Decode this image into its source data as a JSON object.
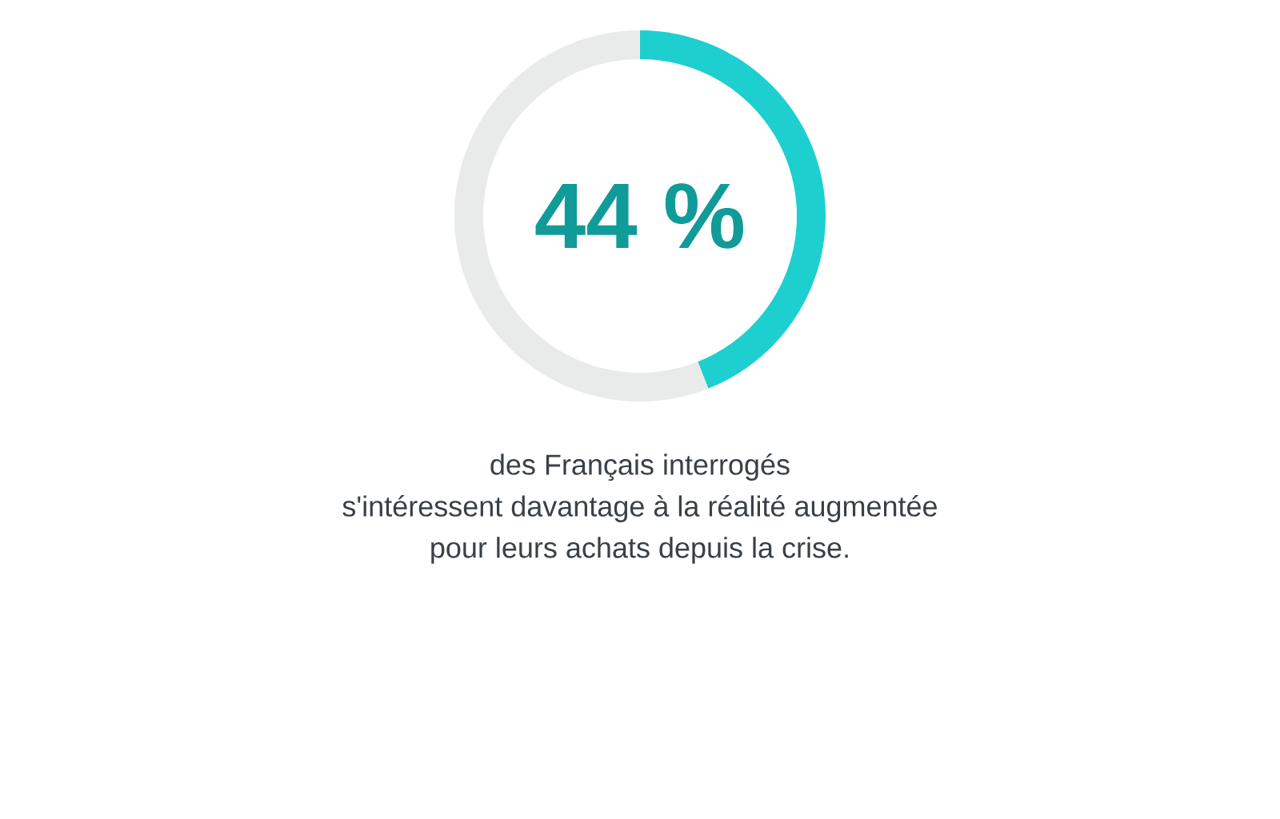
{
  "chart_data": {
    "type": "donut",
    "categories": [
      null,
      null
    ],
    "values": [
      44,
      56
    ],
    "colors": [
      "#1ecfd0",
      "#e9ebeb"
    ],
    "annotations": [
      "44 %",
      "des Français interrogés",
      "s'intéressent davantage à la réalité augmentée",
      "pour leurs achats depuis la crise."
    ]
  }
}
